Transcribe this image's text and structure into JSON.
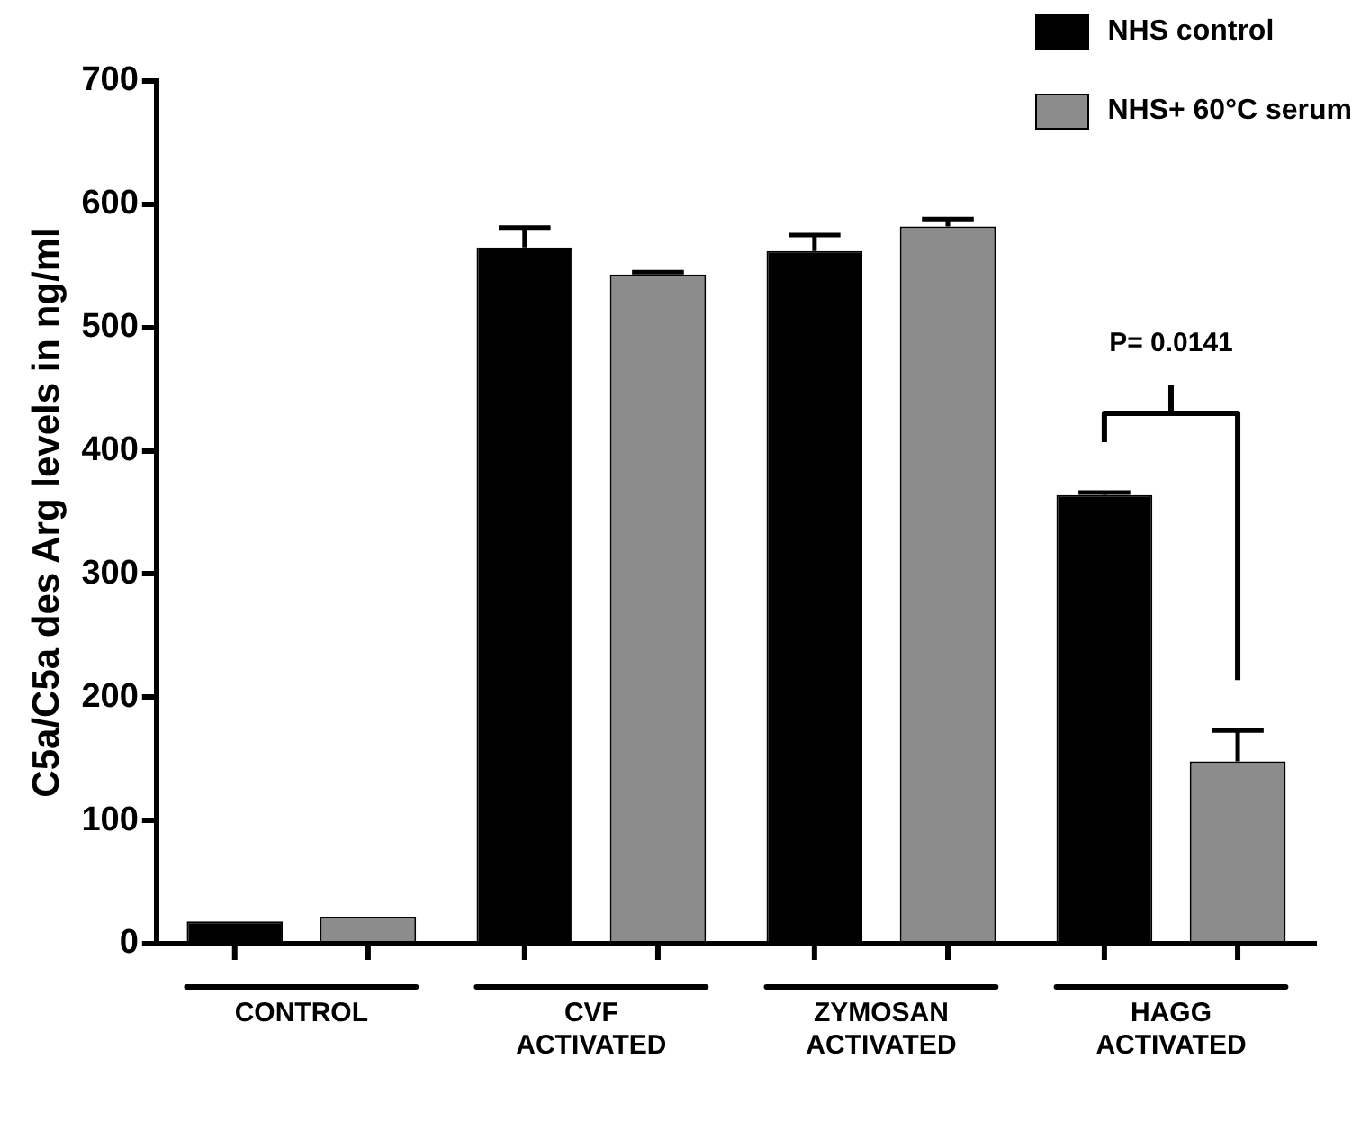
{
  "chart_data": {
    "type": "bar",
    "ylabel": "C5a/C5a des Arg levels in ng/ml",
    "categories": [
      "CONTROL",
      "CVF ACTIVATED",
      "ZYMOSAN ACTIVATED",
      "HAGG ACTIVATED"
    ],
    "series": [
      {
        "name": "NHS control",
        "color": "#000000",
        "values": [
          18,
          565,
          562,
          364
        ],
        "errors": [
          null,
          16,
          13,
          2
        ]
      },
      {
        "name": "NHS+ 60°C serum",
        "color": "#8c8c8c",
        "values": [
          22,
          543,
          582,
          148
        ],
        "errors": [
          null,
          2,
          6,
          25
        ]
      }
    ],
    "ylim": [
      0,
      700
    ],
    "yticks": [
      0,
      100,
      200,
      300,
      400,
      500,
      600,
      700
    ],
    "grid": false,
    "legend": "top right",
    "annotations": [
      "P= 0.0141"
    ]
  }
}
